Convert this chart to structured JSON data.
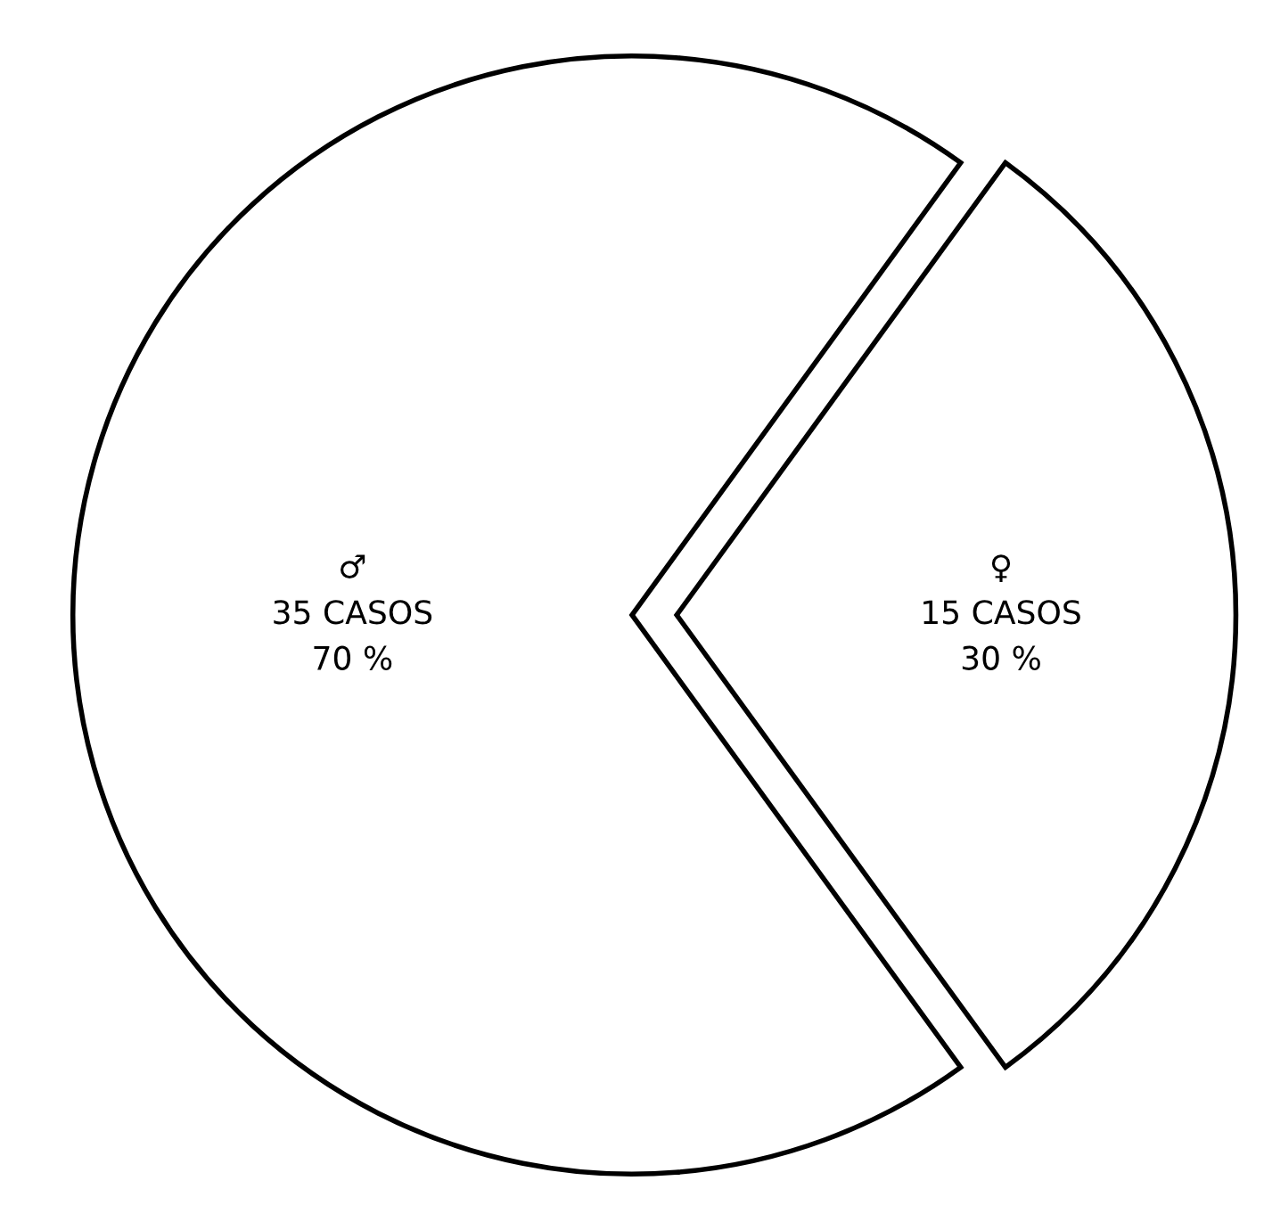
{
  "chart_data": {
    "type": "pie",
    "categories": [
      "♂",
      "♀"
    ],
    "values": [
      35,
      15
    ],
    "value_labels": [
      "35 CASOS\n70 %",
      "15 CASOS\n30 %"
    ],
    "colors": [
      "#ffffff",
      "#ffffff"
    ],
    "legend": false
  }
}
